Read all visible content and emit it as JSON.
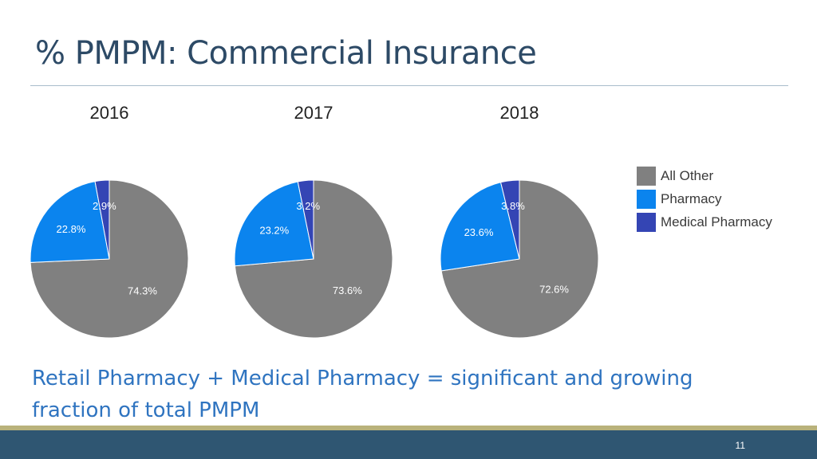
{
  "slide": {
    "title": "% PMPM: Commercial Insurance",
    "caption": "Retail Pharmacy + Medical Pharmacy = significant and growing fraction of total PMPM",
    "page_number": "11"
  },
  "colors": {
    "title": "#2d4a66",
    "rule": "#a9bccb",
    "caption": "#2f74c0",
    "footer_bar": "#2f5672",
    "footer_accent": "#b9b27b"
  },
  "chart_data": {
    "type": "pie",
    "legend_position": "right",
    "series_names": [
      "All Other",
      "Pharmacy",
      "Medical Pharmacy"
    ],
    "series_colors": [
      "#808080",
      "#0b84ee",
      "#3445b4"
    ],
    "charts": [
      {
        "title": "2016",
        "values": [
          74.3,
          22.8,
          2.9
        ],
        "labels": [
          "74.3%",
          "22.8%",
          "2.9%"
        ]
      },
      {
        "title": "2017",
        "values": [
          73.6,
          23.2,
          3.2
        ],
        "labels": [
          "73.6%",
          "23.2%",
          "3.2%"
        ]
      },
      {
        "title": "2018",
        "values": [
          72.6,
          23.6,
          3.8
        ],
        "labels": [
          "72.6%",
          "23.6%",
          "3.8%"
        ]
      }
    ]
  }
}
